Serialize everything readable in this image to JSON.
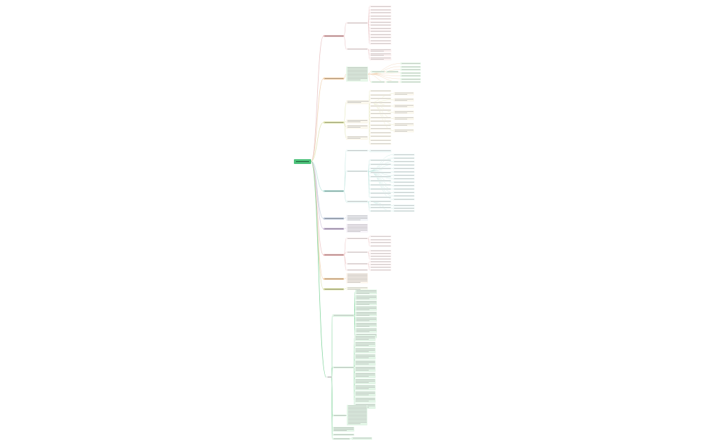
{
  "mindmap": {
    "root": {
      "label": "",
      "color": "#4cc27a"
    },
    "branches": [
      {
        "label": "",
        "color": "#e6b9bb",
        "tint": "#fbf1f1",
        "line": "#e8c3c4"
      },
      {
        "label": "",
        "color": "#f3cfa7",
        "tint": "#e7f7e9",
        "line": "#f0d2b4"
      },
      {
        "label": "",
        "color": "#dde2a8",
        "tint": "#fbf8ee",
        "line": "#e2e5b8"
      },
      {
        "label": "",
        "color": "#b6e0d9",
        "tint": "#eef8f7",
        "line": "#c2e6e0"
      },
      {
        "label": "",
        "color": "#b9c5d8",
        "tint": "#f3f5f9",
        "line": "#c9d2e0"
      },
      {
        "label": "",
        "color": "#c9b9d6",
        "tint": "#f7f3f9",
        "line": "#d6cae0"
      },
      {
        "label": "",
        "color": "#eab8b8",
        "tint": "#fcf3f3",
        "line": "#ecc6c6"
      },
      {
        "label": "",
        "color": "#f3cfa7",
        "tint": "#fdf6ee",
        "line": "#f0d6bb"
      },
      {
        "label": "",
        "color": "#d7dca2",
        "tint": "#fafbee",
        "line": "#dde1b5"
      },
      {
        "label": "",
        "color": "#f4f4f4",
        "tint": "#e3f5e7",
        "line": "#7fd39a"
      }
    ]
  }
}
